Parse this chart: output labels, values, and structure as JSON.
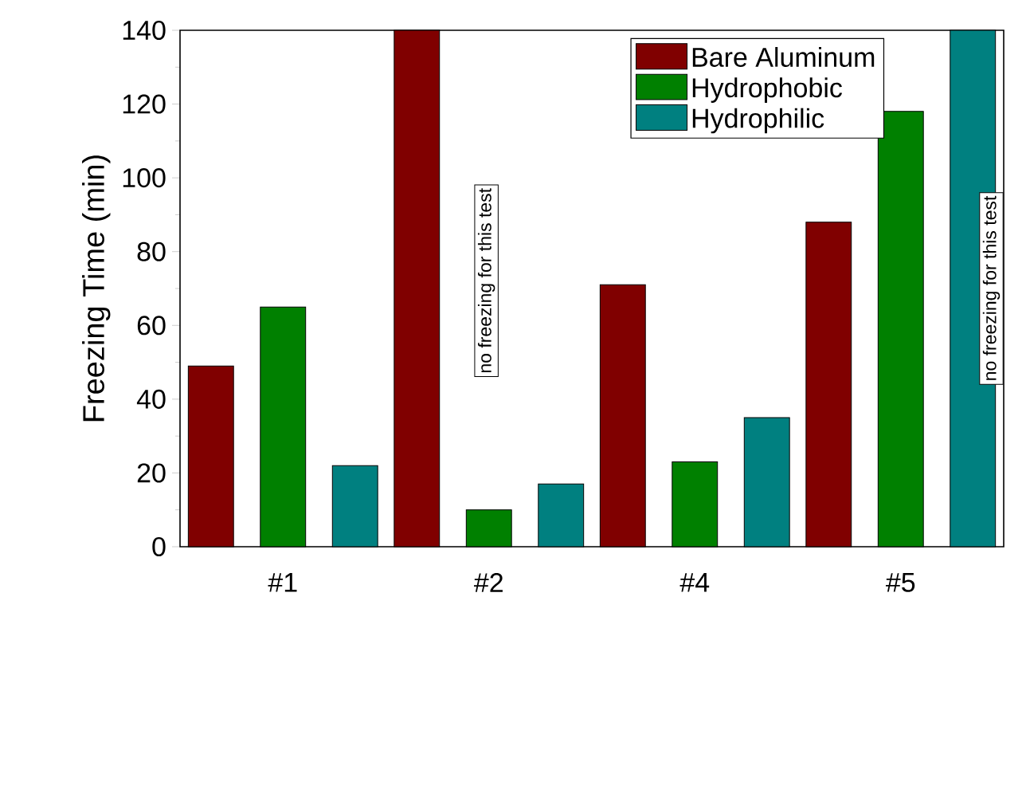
{
  "chart_data": {
    "type": "bar",
    "ylabel": "Freezing Time (min)",
    "categories": [
      "#1",
      "#2",
      "#4",
      "#5"
    ],
    "series": [
      {
        "name": "Bare Aluminum",
        "color": "#800000",
        "values": [
          49,
          140,
          71,
          88
        ]
      },
      {
        "name": "Hydrophobic",
        "color": "#008000",
        "values": [
          65,
          10,
          23,
          118
        ]
      },
      {
        "name": "Hydrophilic",
        "color": "#008080",
        "values": [
          22,
          17,
          35,
          140
        ]
      }
    ],
    "ylim": [
      0,
      140
    ],
    "yticks": [
      0,
      20,
      40,
      60,
      80,
      100,
      120,
      140
    ],
    "legend": "top right",
    "annotations": [
      "no freezing for this test",
      "no freezing for this test"
    ]
  }
}
